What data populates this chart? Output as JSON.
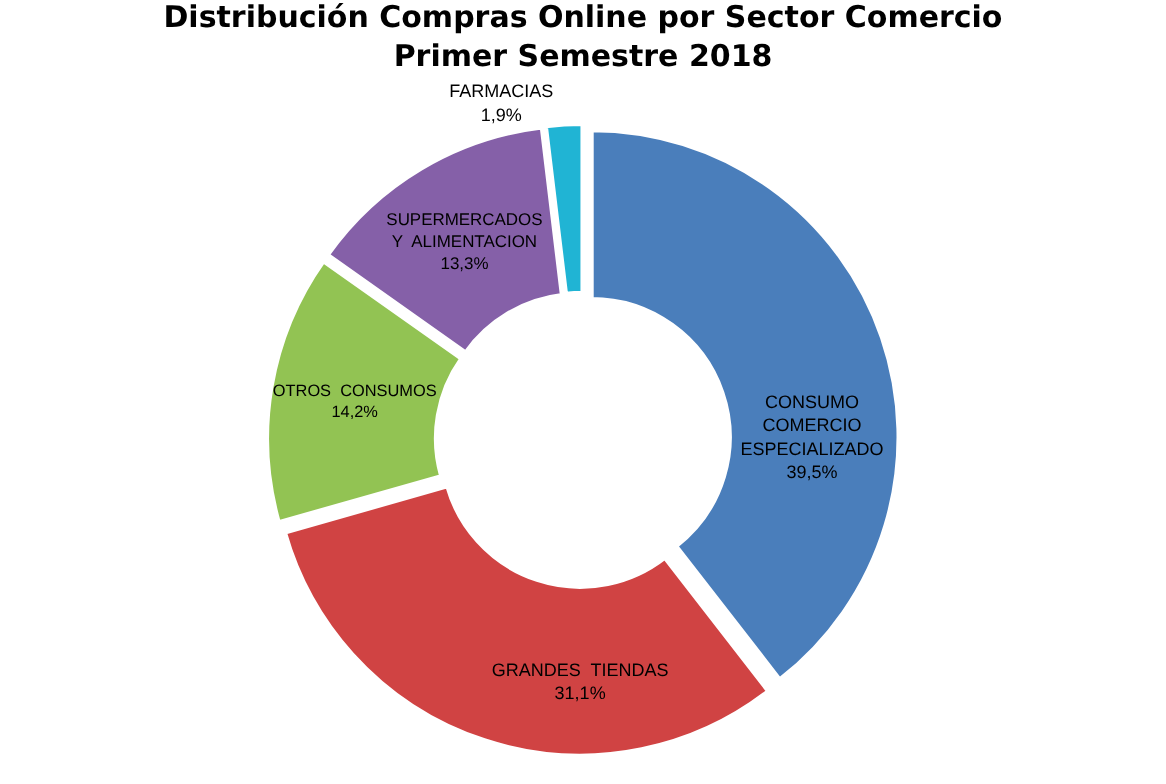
{
  "chart_data": {
    "type": "donut",
    "title": "Distribución Compras Online por Sector Comercio\nPrimer Semestre 2018",
    "categories": [
      "CONSUMO\nCOMERCIO\nESPECIALIZADO",
      "GRANDES  TIENDAS",
      "OTROS  CONSUMOS",
      "SUPERMERCADOS\nY  ALIMENTACION",
      "FARMACIAS"
    ],
    "values": [
      39.5,
      31.1,
      14.2,
      13.3,
      1.9
    ],
    "value_labels": [
      "39,5%",
      "31,1%",
      "14,2%",
      "13,3%",
      "1,9%"
    ],
    "colors": [
      "#4a7ebb",
      "#d04343",
      "#92c353",
      "#8560a8",
      "#20b4d4"
    ],
    "legend": false
  }
}
